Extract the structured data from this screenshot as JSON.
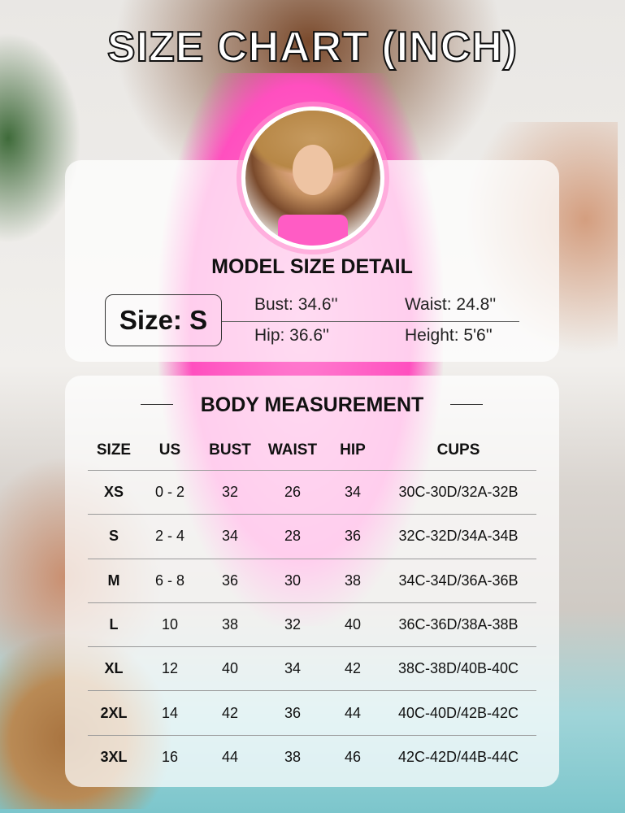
{
  "title": "SIZE CHART (INCH)",
  "model": {
    "heading": "MODEL SIZE DETAIL",
    "size": "Size: S",
    "bust": "Bust: 34.6''",
    "waist": "Waist: 24.8''",
    "hip": "Hip: 36.6''",
    "height": "Height: 5'6''"
  },
  "body": {
    "heading": "BODY MEASUREMENT",
    "columns": [
      "SIZE",
      "US",
      "BUST",
      "WAIST",
      "HIP",
      "CUPS"
    ],
    "rows": [
      [
        "XS",
        "0 - 2",
        "32",
        "26",
        "34",
        "30C-30D/32A-32B"
      ],
      [
        "S",
        "2 - 4",
        "34",
        "28",
        "36",
        "32C-32D/34A-34B"
      ],
      [
        "M",
        "6 - 8",
        "36",
        "30",
        "38",
        "34C-34D/36A-36B"
      ],
      [
        "L",
        "10",
        "38",
        "32",
        "40",
        "36C-36D/38A-38B"
      ],
      [
        "XL",
        "12",
        "40",
        "34",
        "42",
        "38C-38D/40B-40C"
      ],
      [
        "2XL",
        "14",
        "42",
        "36",
        "44",
        "40C-40D/42B-42C"
      ],
      [
        "3XL",
        "16",
        "44",
        "38",
        "46",
        "42C-42D/44B-44C"
      ]
    ]
  }
}
